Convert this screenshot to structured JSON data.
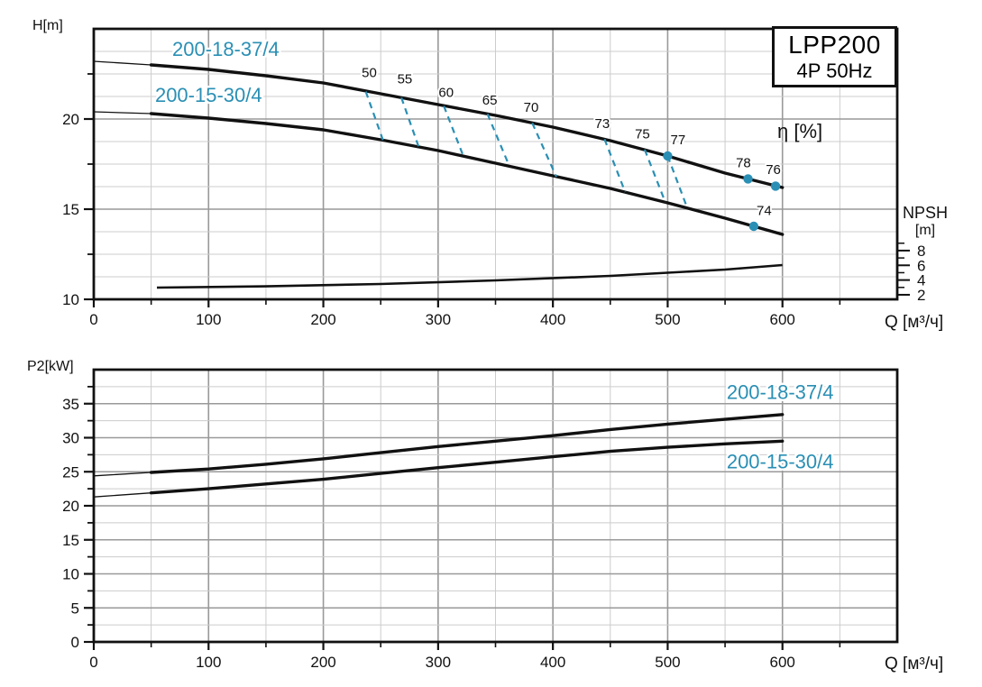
{
  "colors": {
    "curve": "#111111",
    "teal": "#2a8fb4",
    "grid_minor": "#cccccc",
    "grid_major": "#999999",
    "axis": "#111111",
    "background": "#ffffff"
  },
  "title_box": {
    "line1": "LPP200",
    "line2": "4P  50Hz"
  },
  "labels": {
    "h_axis": "H[m]",
    "p2_axis": "P2[kW]",
    "q_axis": "Q [м³/ч]",
    "eta": "η [%]",
    "npsh": "NPSH",
    "npsh_unit": "[m]"
  },
  "chart_data": [
    {
      "id": "head",
      "type": "line",
      "title": "LPP200 4P 50Hz",
      "xlabel": "Q [м³/ч]",
      "ylabel": "H[m]",
      "xlim": [
        0,
        700
      ],
      "ylim": [
        10,
        25
      ],
      "grid": true,
      "xticks": [
        0,
        100,
        200,
        300,
        400,
        500,
        600
      ],
      "xtick_minor_step": 50,
      "yticks": [
        10,
        15,
        20
      ],
      "ytick_minor": [
        12.5,
        17.5,
        22.5
      ],
      "ygrid_major": [
        15,
        20
      ],
      "ygrid_minor_step": 1.25,
      "series": [
        {
          "name": "200-18-37/4",
          "thin_until": 50,
          "label": "200-18-37/4",
          "label_pos": [
            115,
            23.85
          ],
          "points": [
            [
              0,
              23.2
            ],
            [
              50,
              23.0
            ],
            [
              100,
              22.75
            ],
            [
              150,
              22.4
            ],
            [
              200,
              22.0
            ],
            [
              250,
              21.4
            ],
            [
              300,
              20.8
            ],
            [
              350,
              20.2
            ],
            [
              400,
              19.55
            ],
            [
              450,
              18.8
            ],
            [
              500,
              17.95
            ],
            [
              550,
              17.0
            ],
            [
              600,
              16.2
            ]
          ]
        },
        {
          "name": "200-15-30/4",
          "thin_until": 50,
          "label": "200-15-30/4",
          "label_pos": [
            100,
            21.3
          ],
          "points": [
            [
              0,
              20.4
            ],
            [
              50,
              20.3
            ],
            [
              100,
              20.05
            ],
            [
              150,
              19.75
            ],
            [
              200,
              19.4
            ],
            [
              250,
              18.85
            ],
            [
              300,
              18.25
            ],
            [
              350,
              17.55
            ],
            [
              400,
              16.85
            ],
            [
              450,
              16.15
            ],
            [
              500,
              15.35
            ],
            [
              550,
              14.5
            ],
            [
              600,
              13.6
            ]
          ]
        },
        {
          "name": "NPSH",
          "width": 2.6,
          "points": [
            [
              55,
              10.65
            ],
            [
              150,
              10.72
            ],
            [
              250,
              10.85
            ],
            [
              350,
              11.05
            ],
            [
              450,
              11.3
            ],
            [
              550,
              11.65
            ],
            [
              600,
              11.9
            ]
          ]
        }
      ],
      "efficiency": {
        "iso_lines": [
          {
            "value": "50",
            "from": [
              237,
              21.52
            ],
            "to": [
              252,
              18.82
            ],
            "label_pos": [
              240,
              22.33
            ]
          },
          {
            "value": "55",
            "from": [
              268,
              21.18
            ],
            "to": [
              283,
              18.47
            ],
            "label_pos": [
              271,
              21.97
            ]
          },
          {
            "value": "60",
            "from": [
              305,
              20.72
            ],
            "to": [
              322,
              17.94
            ],
            "label_pos": [
              307,
              21.22
            ]
          },
          {
            "value": "65",
            "from": [
              343,
              20.28
            ],
            "to": [
              362,
              17.4
            ],
            "label_pos": [
              345,
              20.8
            ]
          },
          {
            "value": "70",
            "from": [
              382,
              19.78
            ],
            "to": [
              403,
              16.8
            ],
            "label_pos": [
              381,
              20.4
            ]
          },
          {
            "value": "73",
            "from": [
              445,
              18.88
            ],
            "to": [
              463,
              15.95
            ],
            "label_pos": [
              443,
              19.5
            ]
          },
          {
            "value": "75",
            "from": [
              480,
              18.3
            ],
            "to": [
              498,
              15.38
            ],
            "label_pos": [
              478,
              18.93
            ]
          },
          {
            "value": "77",
            "from": [
              500,
              17.95
            ],
            "to": [
              517,
              15.08
            ],
            "label_pos": [
              509,
              18.6
            ]
          }
        ],
        "dots": [
          {
            "value": "77",
            "at": [
              500,
              17.95
            ]
          },
          {
            "value": "78",
            "at": [
              570,
              16.68
            ],
            "label_pos": [
              566,
              17.33
            ]
          },
          {
            "value": "76",
            "at": [
              594,
              16.28
            ],
            "label_pos": [
              592,
              16.95
            ]
          },
          {
            "value": "74",
            "at": [
              575,
              14.05
            ],
            "label_pos": [
              584,
              14.68
            ]
          }
        ]
      },
      "npsh_axis": {
        "label": "NPSH",
        "unit": "[m]",
        "major_ticks": [
          2,
          4,
          6,
          8
        ],
        "minor_ticks": [
          3,
          5,
          7,
          9
        ]
      }
    },
    {
      "id": "power",
      "type": "line",
      "xlabel": "Q [м³/ч]",
      "ylabel": "P2[kW]",
      "xlim": [
        0,
        700
      ],
      "ylim": [
        0,
        40
      ],
      "grid": true,
      "xticks": [
        0,
        100,
        200,
        300,
        400,
        500,
        600
      ],
      "xtick_minor_step": 50,
      "yticks": [
        0,
        5,
        10,
        15,
        20,
        25,
        30,
        35
      ],
      "ytick_minor": [
        2.5,
        7.5,
        12.5,
        17.5,
        22.5,
        27.5,
        32.5,
        37.5
      ],
      "ygrid_major": [
        5,
        10,
        15,
        20,
        25,
        30,
        35
      ],
      "ygrid_minor_step": 2.5,
      "series": [
        {
          "name": "200-18-37/4",
          "thin_until": 50,
          "label": "200-18-37/4",
          "label_pos": [
            598,
            36.6
          ],
          "points": [
            [
              0,
              24.4
            ],
            [
              50,
              24.9
            ],
            [
              100,
              25.4
            ],
            [
              150,
              26.1
            ],
            [
              200,
              26.9
            ],
            [
              250,
              27.8
            ],
            [
              300,
              28.7
            ],
            [
              350,
              29.5
            ],
            [
              400,
              30.3
            ],
            [
              450,
              31.2
            ],
            [
              500,
              32.0
            ],
            [
              550,
              32.7
            ],
            [
              600,
              33.4
            ]
          ]
        },
        {
          "name": "200-15-30/4",
          "thin_until": 50,
          "label": "200-15-30/4",
          "label_pos": [
            598,
            26.4
          ],
          "points": [
            [
              0,
              21.3
            ],
            [
              50,
              21.9
            ],
            [
              100,
              22.5
            ],
            [
              150,
              23.2
            ],
            [
              200,
              23.9
            ],
            [
              250,
              24.75
            ],
            [
              300,
              25.6
            ],
            [
              350,
              26.4
            ],
            [
              400,
              27.2
            ],
            [
              450,
              28.0
            ],
            [
              500,
              28.6
            ],
            [
              550,
              29.1
            ],
            [
              600,
              29.5
            ]
          ]
        }
      ]
    }
  ]
}
